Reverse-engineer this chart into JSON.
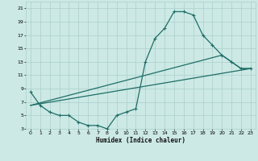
{
  "xlabel": "Humidex (Indice chaleur)",
  "xlim": [
    -0.5,
    23.5
  ],
  "ylim": [
    3,
    22
  ],
  "xticks": [
    0,
    1,
    2,
    3,
    4,
    5,
    6,
    7,
    8,
    9,
    10,
    11,
    12,
    13,
    14,
    15,
    16,
    17,
    18,
    19,
    20,
    21,
    22,
    23
  ],
  "yticks": [
    3,
    5,
    7,
    9,
    11,
    13,
    15,
    17,
    19,
    21
  ],
  "bg_color": "#cce9e5",
  "grid_color": "#aacfcb",
  "line_color": "#1e6e66",
  "line1_x": [
    0,
    1,
    2,
    3,
    4,
    5,
    6,
    7,
    8,
    9,
    10,
    11,
    12,
    13,
    14,
    15,
    16,
    17,
    18,
    19,
    20,
    21,
    22,
    23
  ],
  "line1_y": [
    8.5,
    6.5,
    5.5,
    5.0,
    5.0,
    4.0,
    3.5,
    3.5,
    3.0,
    5.0,
    5.5,
    6.0,
    13.0,
    16.5,
    18.0,
    20.5,
    20.5,
    20.0,
    17.0,
    15.5,
    14.0,
    13.0,
    12.0,
    12.0
  ],
  "line2_x": [
    0,
    23
  ],
  "line2_y": [
    6.5,
    12.0
  ],
  "line3_x": [
    0,
    20,
    21,
    22,
    23
  ],
  "line3_y": [
    6.5,
    14.0,
    13.0,
    12.0,
    12.0
  ]
}
